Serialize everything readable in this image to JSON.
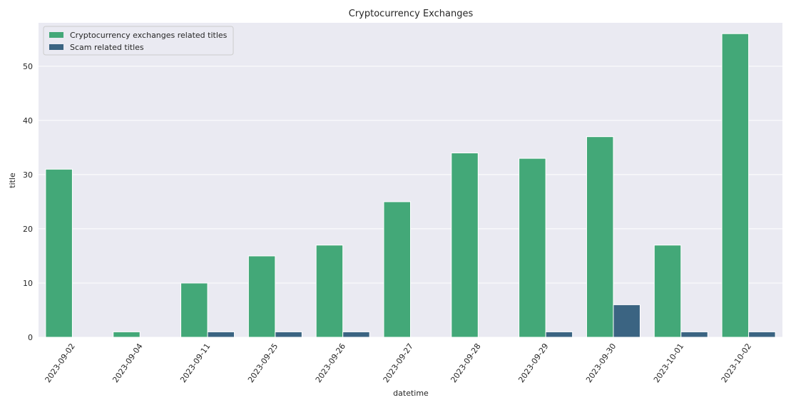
{
  "chart_data": {
    "type": "bar",
    "title": "Cryptocurrency Exchanges",
    "xlabel": "datetime",
    "ylabel": "title",
    "ylim": [
      0,
      58
    ],
    "yticks": [
      0,
      10,
      20,
      30,
      40,
      50
    ],
    "grid": true,
    "legend_position": "top-left",
    "categories": [
      "2023-09-02",
      "2023-09-04",
      "2023-09-11",
      "2023-09-25",
      "2023-09-26",
      "2023-09-27",
      "2023-09-28",
      "2023-09-29",
      "2023-09-30",
      "2023-10-01",
      "2023-10-02"
    ],
    "series": [
      {
        "name": "Cryptocurrency exchanges related titles",
        "color": "#43a878",
        "values": [
          31,
          1,
          10,
          15,
          17,
          25,
          34,
          33,
          37,
          17,
          56
        ]
      },
      {
        "name": "Scam related titles",
        "color": "#3b6482",
        "values": [
          0,
          0,
          1,
          1,
          1,
          0,
          0,
          1,
          6,
          1,
          1
        ]
      }
    ]
  }
}
